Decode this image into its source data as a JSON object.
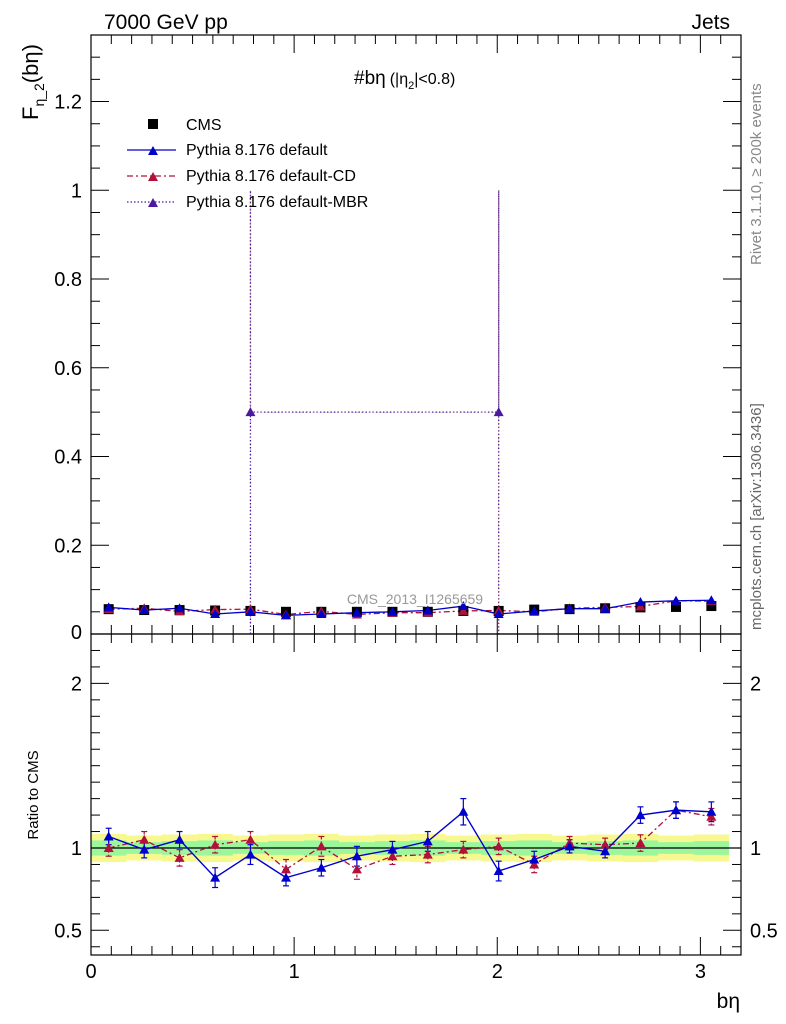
{
  "header": {
    "left": "7000 GeV pp",
    "right": "Jets"
  },
  "side": {
    "rivet": "Rivet 3.1.10, ≥ 200k events",
    "mcplots": "mcplots.cern.ch [arXiv:1306.3436]"
  },
  "watermark": "CMS_2013_I1265659",
  "colors": {
    "cms": "#000000",
    "default": "#0000cc",
    "cd": "#b0103a",
    "mbr": "#4b1aa0",
    "band_inner": "#9cf79c",
    "band_outer": "#f8f890"
  },
  "chart_data": [
    {
      "type": "line",
      "panel": "main",
      "title": "#bη (|η₂|<0.8)",
      "title_parts": {
        "main": "#bη",
        "paren_open": "(|η",
        "sub": "2",
        "paren_close": "|<0.8)"
      },
      "ylabel_parts": {
        "main": "F",
        "sub": "η_2",
        "paren": "(bη)"
      },
      "xlim": [
        0,
        3.2
      ],
      "ylim": [
        0,
        1.35
      ],
      "yticks": [
        0.2,
        0.4,
        0.6,
        0.8,
        1,
        1.2
      ],
      "ytick_labels": [
        "0.2",
        "0.4",
        "0.6",
        "0.8",
        "1",
        "1.2"
      ],
      "ybottom_label": "0",
      "x": [
        0.087,
        0.262,
        0.436,
        0.611,
        0.785,
        0.96,
        1.134,
        1.309,
        1.484,
        1.658,
        1.833,
        2.007,
        2.182,
        2.356,
        2.531,
        2.705,
        2.88,
        3.054
      ],
      "series": [
        {
          "name": "CMS",
          "values": [
            0.056,
            0.054,
            0.054,
            0.053,
            0.052,
            0.05,
            0.05,
            0.05,
            0.05,
            0.05,
            0.052,
            0.052,
            0.055,
            0.056,
            0.058,
            0.06,
            0.061,
            0.063
          ]
        },
        {
          "name": "Pythia 8.176 default",
          "values": [
            0.06,
            0.054,
            0.058,
            0.045,
            0.05,
            0.042,
            0.045,
            0.048,
            0.05,
            0.053,
            0.063,
            0.045,
            0.052,
            0.057,
            0.057,
            0.072,
            0.075,
            0.076
          ]
        },
        {
          "name": "Pythia 8.176 default-CD",
          "values": [
            0.056,
            0.058,
            0.051,
            0.055,
            0.056,
            0.044,
            0.051,
            0.044,
            0.048,
            0.048,
            0.052,
            0.053,
            0.05,
            0.058,
            0.06,
            0.062,
            0.075,
            0.074
          ]
        },
        {
          "name": "Pythia 8.176 default-MBR",
          "values": [
            null,
            null,
            null,
            null,
            0.5,
            null,
            null,
            null,
            null,
            null,
            null,
            0.5,
            null,
            null,
            null,
            null,
            null,
            null
          ],
          "segments": [
            [
              0.785,
              0
            ],
            [
              0.785,
              1.0
            ],
            [
              0.785,
              0.5
            ],
            [
              2.007,
              0.5
            ],
            [
              2.007,
              1.0
            ],
            [
              2.007,
              0
            ]
          ]
        }
      ]
    },
    {
      "type": "line",
      "panel": "ratio",
      "ylabel": "Ratio to CMS",
      "xlabel": "bη",
      "xlim": [
        0,
        3.2
      ],
      "ylim": [
        0.35,
        2.3
      ],
      "yticks": [
        0.5,
        1,
        2
      ],
      "ytick_labels": [
        "0.5",
        "1",
        "2"
      ],
      "xticks": [
        0,
        1,
        2,
        3
      ],
      "xtick_labels": [
        "0",
        "1",
        "2",
        "3"
      ],
      "band_inner": 0.04,
      "band_outer": 0.08,
      "series": [
        {
          "name": "Pythia 8.176 default",
          "values": [
            1.07,
            0.99,
            1.05,
            0.82,
            0.96,
            0.82,
            0.88,
            0.95,
            0.99,
            1.04,
            1.22,
            0.86,
            0.93,
            1.01,
            0.98,
            1.2,
            1.23,
            1.22
          ],
          "errors": [
            0.05,
            0.05,
            0.05,
            0.06,
            0.06,
            0.05,
            0.05,
            0.06,
            0.05,
            0.06,
            0.08,
            0.06,
            0.05,
            0.04,
            0.04,
            0.05,
            0.05,
            0.06
          ]
        },
        {
          "name": "Pythia 8.176 default-CD",
          "values": [
            1.0,
            1.05,
            0.94,
            1.02,
            1.05,
            0.87,
            1.01,
            0.87,
            0.95,
            0.96,
            0.99,
            1.01,
            0.9,
            1.03,
            1.02,
            1.03,
            1.23,
            1.19
          ],
          "errors": [
            0.05,
            0.05,
            0.05,
            0.05,
            0.05,
            0.06,
            0.06,
            0.06,
            0.05,
            0.05,
            0.05,
            0.05,
            0.05,
            0.04,
            0.04,
            0.05,
            0.05,
            0.05
          ]
        }
      ]
    }
  ]
}
